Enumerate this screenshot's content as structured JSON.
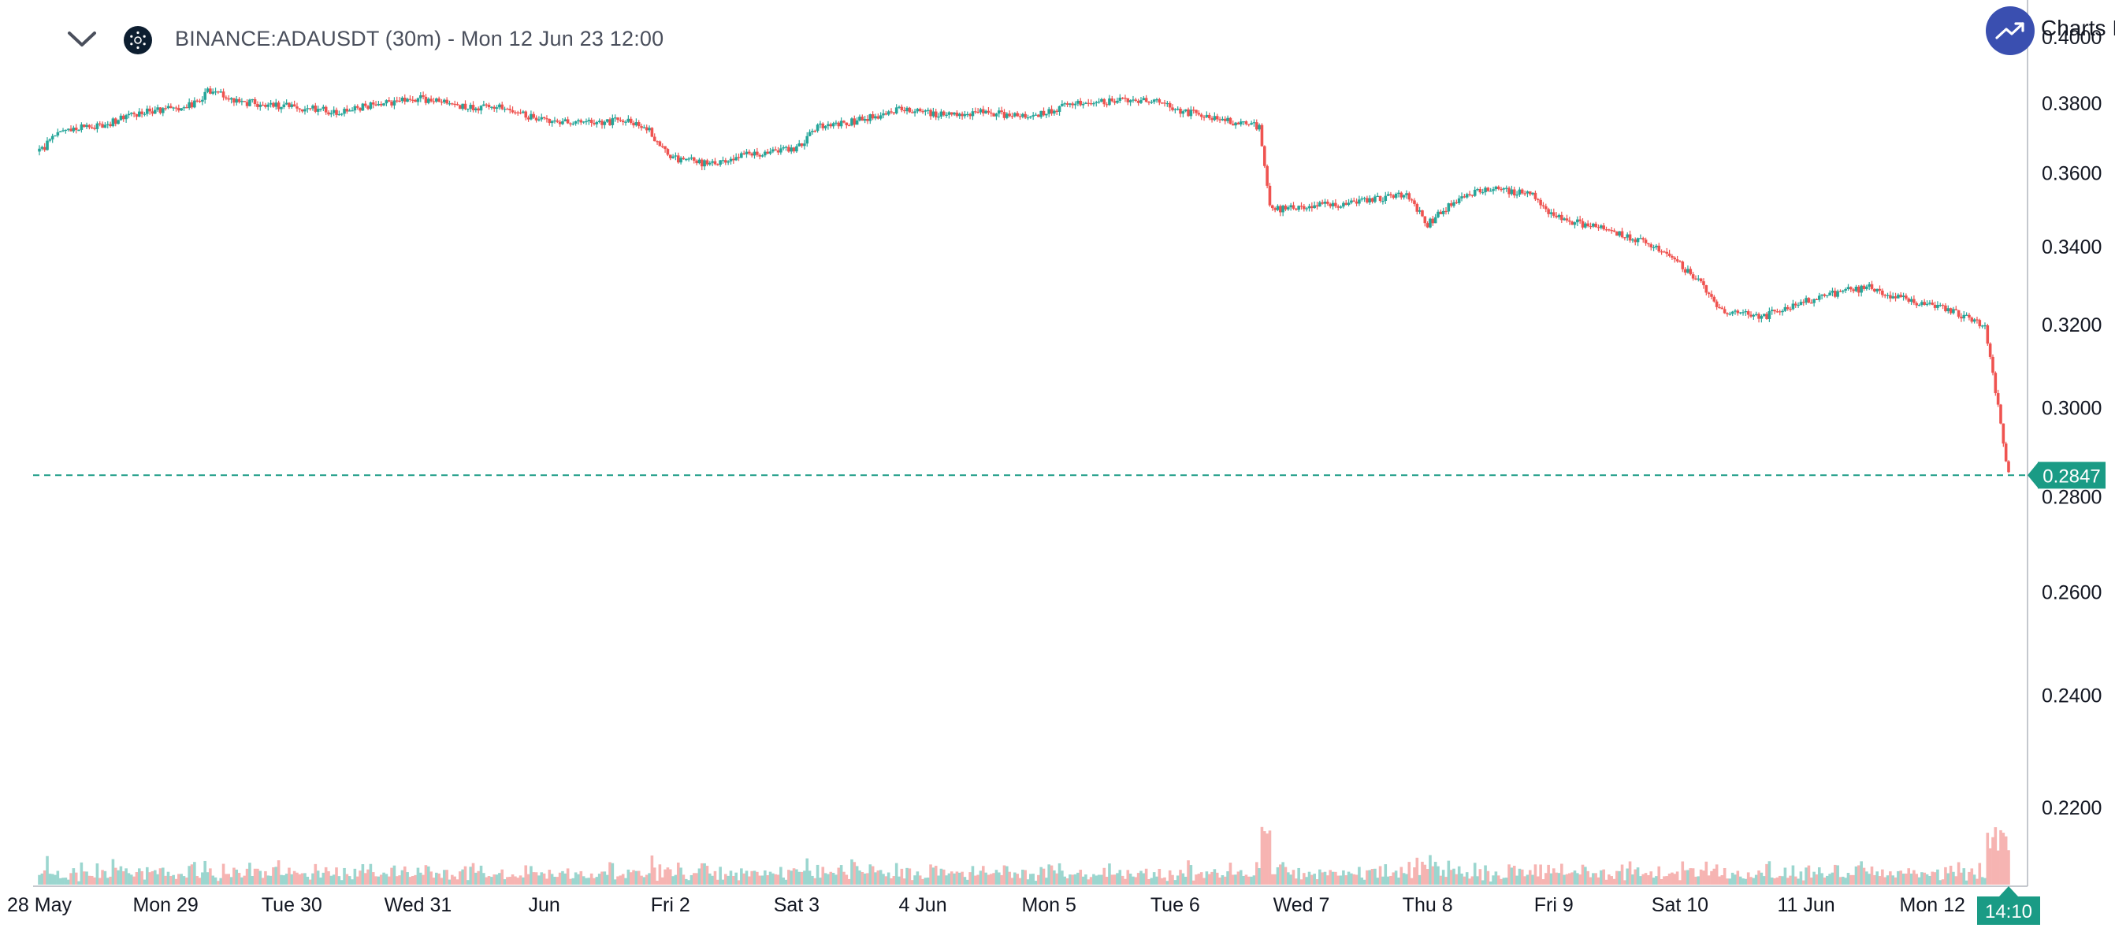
{
  "header": {
    "title": "BINANCE:ADAUSDT (30m) - Mon 12 Jun 23 12:00",
    "brand_label": "Charts I"
  },
  "icons": {
    "collapse": "chevron-down-icon",
    "symbol_logo": "cardano-logo-icon",
    "brand": "trend-up-icon"
  },
  "colors": {
    "up": "#26a69a",
    "down": "#ef5350",
    "price_line": "#1a9b85",
    "brand": "#3a4fb0"
  },
  "chart_data": {
    "type": "candlestick",
    "symbol": "BINANCE:ADAUSDT",
    "interval": "30m",
    "y_ticks": [
      "0.4000",
      "0.3800",
      "0.3600",
      "0.3400",
      "0.3200",
      "0.3000",
      "0.2800",
      "0.2600",
      "0.2400",
      "0.2200"
    ],
    "ylim": [
      0.208,
      0.4
    ],
    "y_scale": "log",
    "x_ticks": [
      "28 May",
      "Mon 29",
      "Tue 30",
      "Wed 31",
      "Jun",
      "Fri 2",
      "Sat 3",
      "4 Jun",
      "Mon 5",
      "Tue 6",
      "Wed 7",
      "Thu 8",
      "Fri 9",
      "Sat 10",
      "11 Jun",
      "Mon 12"
    ],
    "x_tick_values": [
      "2023-05-28",
      "2023-05-29",
      "2023-05-30",
      "2023-05-31",
      "2023-06-01",
      "2023-06-02",
      "2023-06-03",
      "2023-06-04",
      "2023-06-05",
      "2023-06-06",
      "2023-06-07",
      "2023-06-08",
      "2023-06-09",
      "2023-06-10",
      "2023-06-11",
      "2023-06-12"
    ],
    "xlim": [
      "2023-05-28",
      "2023-06-12 14:30"
    ],
    "last_price": "0.2847",
    "last_price_value": 0.2847,
    "countdown": "14:10",
    "price_path": [
      [
        "2023-05-28 00:00",
        0.366
      ],
      [
        "2023-05-28 04:00",
        0.372
      ],
      [
        "2023-05-28 12:00",
        0.3735
      ],
      [
        "2023-05-28 18:00",
        0.377
      ],
      [
        "2023-05-29 00:00",
        0.378
      ],
      [
        "2023-05-29 06:00",
        0.38
      ],
      [
        "2023-05-29 08:00",
        0.384
      ],
      [
        "2023-05-29 14:00",
        0.3805
      ],
      [
        "2023-05-30 00:00",
        0.379
      ],
      [
        "2023-05-30 08:00",
        0.3775
      ],
      [
        "2023-05-30 16:00",
        0.3795
      ],
      [
        "2023-05-31 00:00",
        0.3815
      ],
      [
        "2023-05-31 08:00",
        0.379
      ],
      [
        "2023-05-31 16:00",
        0.379
      ],
      [
        "2023-06-01 00:00",
        0.3745
      ],
      [
        "2023-06-01 08:00",
        0.374
      ],
      [
        "2023-06-01 16:00",
        0.375
      ],
      [
        "2023-06-01 20:00",
        0.372
      ],
      [
        "2023-06-02 00:00",
        0.364
      ],
      [
        "2023-06-02 08:00",
        0.3625
      ],
      [
        "2023-06-02 16:00",
        0.3655
      ],
      [
        "2023-06-03 00:00",
        0.3665
      ],
      [
        "2023-06-03 04:00",
        0.373
      ],
      [
        "2023-06-03 12:00",
        0.375
      ],
      [
        "2023-06-03 20:00",
        0.378
      ],
      [
        "2023-06-04 04:00",
        0.3765
      ],
      [
        "2023-06-04 12:00",
        0.3775
      ],
      [
        "2023-06-04 20:00",
        0.3755
      ],
      [
        "2023-06-05 04:00",
        0.38
      ],
      [
        "2023-06-05 12:00",
        0.3805
      ],
      [
        "2023-06-05 20:00",
        0.3805
      ],
      [
        "2023-06-06 00:00",
        0.378
      ],
      [
        "2023-06-06 08:00",
        0.3755
      ],
      [
        "2023-06-06 16:00",
        0.373
      ],
      [
        "2023-06-06 18:00",
        0.35
      ],
      [
        "2023-06-07 00:00",
        0.3505
      ],
      [
        "2023-06-07 12:00",
        0.352
      ],
      [
        "2023-06-07 20:00",
        0.354
      ],
      [
        "2023-06-08 00:00",
        0.346
      ],
      [
        "2023-06-08 06:00",
        0.353
      ],
      [
        "2023-06-08 12:00",
        0.3555
      ],
      [
        "2023-06-08 20:00",
        0.354
      ],
      [
        "2023-06-09 00:00",
        0.348
      ],
      [
        "2023-06-09 08:00",
        0.345
      ],
      [
        "2023-06-09 16:00",
        0.342
      ],
      [
        "2023-06-09 22:00",
        0.338
      ],
      [
        "2023-06-10 04:00",
        0.33
      ],
      [
        "2023-06-10 08:00",
        0.323
      ],
      [
        "2023-06-10 16:00",
        0.322
      ],
      [
        "2023-06-11 00:00",
        0.326
      ],
      [
        "2023-06-11 08:00",
        0.3285
      ],
      [
        "2023-06-11 12:00",
        0.3295
      ],
      [
        "2023-06-11 16:00",
        0.327
      ],
      [
        "2023-06-11 22:00",
        0.3255
      ],
      [
        "2023-06-12 04:00",
        0.323
      ],
      [
        "2023-06-12 10:00",
        0.3195
      ],
      [
        "2023-06-12 14:30",
        0.2847
      ]
    ],
    "volume_scale_max": 1.0
  }
}
